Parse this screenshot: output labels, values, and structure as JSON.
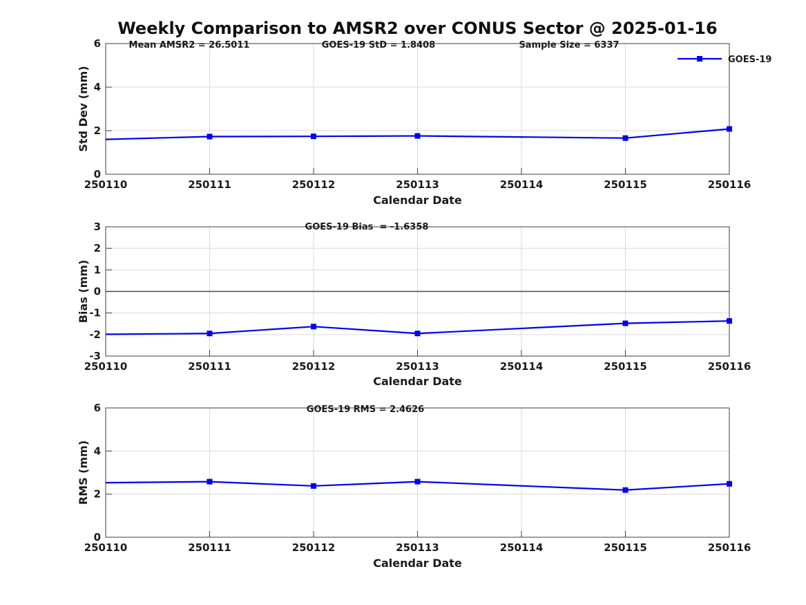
{
  "title": "Weekly Comparison to AMSR2 over CONUS Sector @ 2025-01-16",
  "legend": {
    "label": "GOES-19",
    "position": "top-right"
  },
  "x_axis": {
    "label": "Calendar Date",
    "categories": [
      "250110",
      "250111",
      "250112",
      "250113",
      "250114",
      "250115",
      "250116"
    ]
  },
  "colors": {
    "series": "#0000ee",
    "grid": "#d9d9d9",
    "axis": "#3d3d3d",
    "zero_line": "#4d4d4d",
    "text": "#1a1a1a",
    "background": "#ffffff"
  },
  "chart_data": [
    {
      "type": "line",
      "name": "std-dev",
      "ylabel": "Std Dev (mm)",
      "ylim": [
        0,
        6
      ],
      "yticks": [
        0,
        2,
        4,
        6
      ],
      "grid": true,
      "zero_line": false,
      "annotations": [
        "Mean AMSR2 = 26.5011",
        "GOES-19 StD = 1.8408",
        "Sample Size = 6337"
      ],
      "series": [
        {
          "name": "GOES-19",
          "points": [
            {
              "x": "250110",
              "y": 1.6,
              "marker": false
            },
            {
              "x": "250111",
              "y": 1.73
            },
            {
              "x": "250112",
              "y": 1.74
            },
            {
              "x": "250113",
              "y": 1.76
            },
            {
              "x": "250115",
              "y": 1.66
            },
            {
              "x": "250116",
              "y": 2.08
            }
          ]
        }
      ]
    },
    {
      "type": "line",
      "name": "bias",
      "ylabel": "Bias (mm)",
      "ylim": [
        -3,
        3
      ],
      "yticks": [
        -3,
        -2,
        -1,
        0,
        1,
        2,
        3
      ],
      "grid": true,
      "zero_line": true,
      "annotations": [
        "GOES-19 Bias  = -1.6358"
      ],
      "series": [
        {
          "name": "GOES-19",
          "points": [
            {
              "x": "250110",
              "y": -1.99,
              "marker": false
            },
            {
              "x": "250111",
              "y": -1.95
            },
            {
              "x": "250112",
              "y": -1.63
            },
            {
              "x": "250113",
              "y": -1.95
            },
            {
              "x": "250115",
              "y": -1.48
            },
            {
              "x": "250116",
              "y": -1.37
            }
          ]
        }
      ]
    },
    {
      "type": "line",
      "name": "rms",
      "ylabel": "RMS (mm)",
      "ylim": [
        0,
        6
      ],
      "yticks": [
        0,
        2,
        4,
        6
      ],
      "grid": true,
      "zero_line": false,
      "annotations": [
        "GOES-19 RMS = 2.4626"
      ],
      "series": [
        {
          "name": "GOES-19",
          "points": [
            {
              "x": "250110",
              "y": 2.53,
              "marker": false
            },
            {
              "x": "250111",
              "y": 2.58
            },
            {
              "x": "250112",
              "y": 2.38
            },
            {
              "x": "250113",
              "y": 2.58
            },
            {
              "x": "250115",
              "y": 2.19
            },
            {
              "x": "250116",
              "y": 2.48
            }
          ]
        }
      ]
    }
  ]
}
